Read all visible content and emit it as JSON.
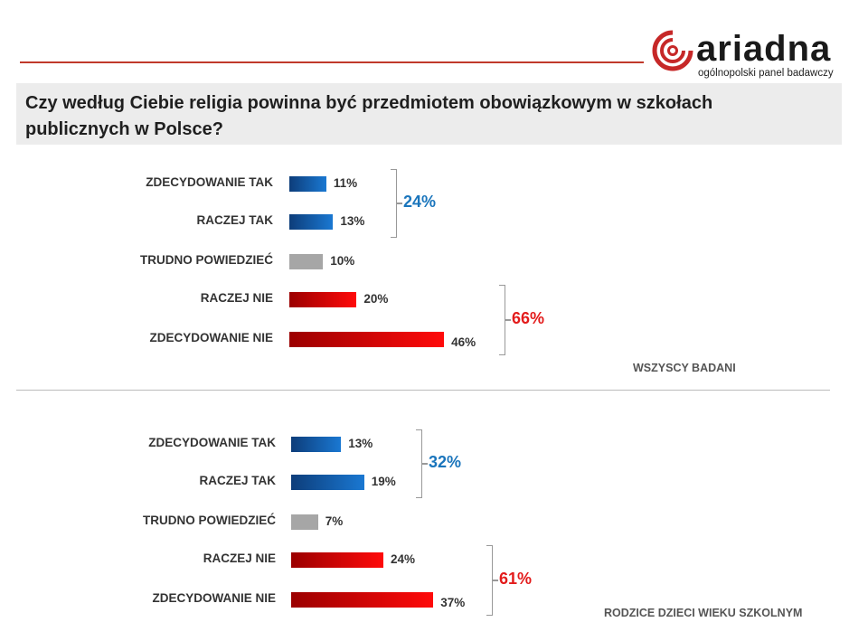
{
  "header": {
    "logo_text": "ariadna",
    "logo_subtitle": "ogólnopolski panel badawczy",
    "question": "Czy według Ciebie religia powinna być przedmiotem obowiązkowym w szkołach publicznych w Polsce?"
  },
  "colors": {
    "tak": "#1565c0",
    "trudno": "#a6a6a6",
    "nie": "#e50000",
    "tak_label": "#1a75bc",
    "nie_label": "#e31b1b"
  },
  "chart_data": [
    {
      "type": "bar",
      "orientation": "horizontal",
      "caption": "WSZYSCY BADANI",
      "categories": [
        "ZDECYDOWANIE  TAK",
        "RACZEJ TAK",
        "TRUDNO  POWIEDZIEĆ",
        "RACZEJ NIE",
        "ZDECYDOWANIE  NIE"
      ],
      "values": [
        11,
        13,
        10,
        20,
        46
      ],
      "value_labels": [
        "11%",
        "13%",
        "10%",
        "20%",
        "46%"
      ],
      "groups": [
        {
          "label": "24%",
          "range": [
            0,
            1
          ],
          "color": "tak_label"
        },
        {
          "label": "66%",
          "range": [
            3,
            4
          ],
          "color": "nie_label"
        }
      ]
    },
    {
      "type": "bar",
      "orientation": "horizontal",
      "caption": "RODZICE DZIECI  WIEKU SZKOLNYM",
      "categories": [
        "ZDECYDOWANIE  TAK",
        "RACZEJ TAK",
        "TRUDNO  POWIEDZIEĆ",
        "RACZEJ NIE",
        "ZDECYDOWANIE  NIE"
      ],
      "values": [
        13,
        19,
        7,
        24,
        37
      ],
      "value_labels": [
        "13%",
        "19%",
        "7%",
        "24%",
        "37%"
      ],
      "groups": [
        {
          "label": "32%",
          "range": [
            0,
            1
          ],
          "color": "tak_label"
        },
        {
          "label": "61%",
          "range": [
            3,
            4
          ],
          "color": "nie_label"
        }
      ]
    }
  ]
}
